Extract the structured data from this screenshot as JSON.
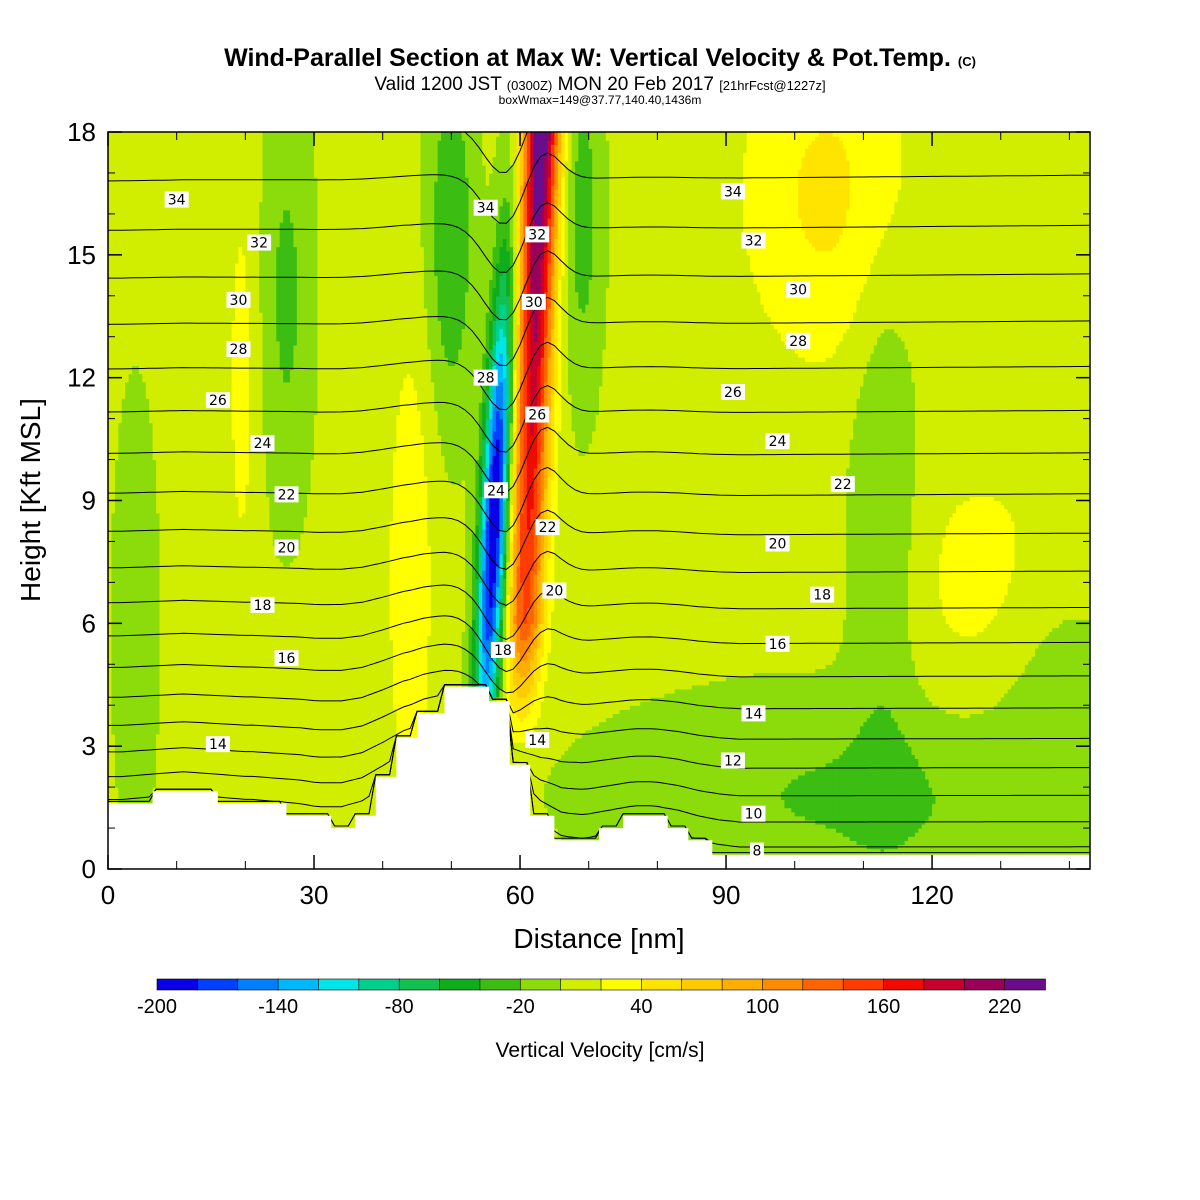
{
  "title": {
    "main": "Wind-Parallel Section at Max W: Vertical Velocity & Pot.Temp.",
    "copyright": "(C)",
    "valid_prefix": "Valid 1200 JST",
    "valid_utc": "(0300Z)",
    "valid_date": "MON 20 Feb 2017",
    "forecast": "[21hrFcst@1227z]",
    "boxinfo": "boxWmax=149@37.77,140.40,1436m"
  },
  "chart_data": {
    "type": "heatmap",
    "xlabel": "Distance [nm]",
    "ylabel": "Height [Kft MSL]",
    "xlim": [
      0,
      143
    ],
    "ylim": [
      0,
      18
    ],
    "x_ticks": [
      0,
      30,
      60,
      90,
      120
    ],
    "y_ticks": [
      0,
      3,
      6,
      9,
      12,
      15,
      18
    ],
    "terrain_profile": [
      [
        0,
        1.6
      ],
      [
        6.5,
        1.6
      ],
      [
        6.5,
        1.9
      ],
      [
        16,
        1.9
      ],
      [
        16,
        1.6
      ],
      [
        26,
        1.6
      ],
      [
        26,
        1.3
      ],
      [
        32.5,
        1.3
      ],
      [
        32.5,
        1.0
      ],
      [
        36,
        1.0
      ],
      [
        36,
        1.3
      ],
      [
        39,
        1.3
      ],
      [
        39,
        2.25
      ],
      [
        42,
        2.25
      ],
      [
        42,
        3.2
      ],
      [
        45,
        3.2
      ],
      [
        45,
        3.8
      ],
      [
        49,
        3.8
      ],
      [
        49,
        4.45
      ],
      [
        55.5,
        4.45
      ],
      [
        55.5,
        4.1
      ],
      [
        58.5,
        4.1
      ],
      [
        58.5,
        2.55
      ],
      [
        61.5,
        2.55
      ],
      [
        61.5,
        1.3
      ],
      [
        65,
        1.3
      ],
      [
        65,
        0.7
      ],
      [
        71.5,
        0.7
      ],
      [
        71.5,
        1.0
      ],
      [
        75,
        1.0
      ],
      [
        75,
        1.3
      ],
      [
        81.5,
        1.3
      ],
      [
        81.5,
        1.0
      ],
      [
        84.5,
        1.0
      ],
      [
        84.5,
        0.7
      ],
      [
        88,
        0.7
      ],
      [
        88,
        0.35
      ],
      [
        143,
        0.35
      ]
    ],
    "vertical_velocity": {
      "units": "cm/s",
      "colorbar_levels": [
        -200,
        -180,
        -160,
        -140,
        -120,
        -100,
        -80,
        -60,
        -40,
        -20,
        0,
        20,
        40,
        60,
        80,
        100,
        120,
        140,
        160,
        180,
        200,
        220,
        240
      ],
      "colorbar_labels": [
        -200,
        -140,
        -80,
        -20,
        40,
        100,
        160,
        220
      ],
      "colorbar_title": "Vertical Velocity [cm/s]",
      "colors": [
        "#0a00e8",
        "#0040ff",
        "#0080ff",
        "#00b8ff",
        "#00e6e6",
        "#00d08c",
        "#12c050",
        "#0fad1a",
        "#3bbd12",
        "#8cdc0c",
        "#d2ee00",
        "#ffff00",
        "#ffe400",
        "#ffca00",
        "#ffae00",
        "#ff8c00",
        "#ff6400",
        "#ff3c00",
        "#f00a00",
        "#c8002d",
        "#9b0059",
        "#6a0d8c"
      ],
      "features": {
        "downdraft_core": {
          "x": 55.5,
          "y": 8.5,
          "min": -200
        },
        "updraft_core": {
          "x": 62.5,
          "y": 16.5,
          "max": 240
        }
      }
    },
    "potential_temperature_contours": {
      "interval": 1,
      "labeled_levels": [
        8,
        10,
        12,
        14,
        16,
        18,
        20,
        22,
        24,
        26,
        28,
        30,
        32,
        34
      ]
    },
    "contour_labels": [
      {
        "x": 10,
        "y": 16.35,
        "text": "34"
      },
      {
        "x": 22,
        "y": 15.3,
        "text": "32"
      },
      {
        "x": 19,
        "y": 13.9,
        "text": "30"
      },
      {
        "x": 19,
        "y": 12.7,
        "text": "28"
      },
      {
        "x": 16,
        "y": 11.45,
        "text": "26"
      },
      {
        "x": 22.5,
        "y": 10.4,
        "text": "24"
      },
      {
        "x": 26,
        "y": 9.15,
        "text": "22"
      },
      {
        "x": 26,
        "y": 7.85,
        "text": "20"
      },
      {
        "x": 22.5,
        "y": 6.45,
        "text": "18"
      },
      {
        "x": 26,
        "y": 5.15,
        "text": "16"
      },
      {
        "x": 16,
        "y": 3.05,
        "text": "14"
      },
      {
        "x": 55,
        "y": 16.15,
        "text": "34"
      },
      {
        "x": 62.5,
        "y": 15.5,
        "text": "32"
      },
      {
        "x": 62,
        "y": 13.85,
        "text": "30"
      },
      {
        "x": 55,
        "y": 12.0,
        "text": "28"
      },
      {
        "x": 62.5,
        "y": 11.1,
        "text": "26"
      },
      {
        "x": 56.5,
        "y": 9.25,
        "text": "24"
      },
      {
        "x": 64,
        "y": 8.35,
        "text": "22"
      },
      {
        "x": 65,
        "y": 6.8,
        "text": "20"
      },
      {
        "x": 57.5,
        "y": 5.35,
        "text": "18"
      },
      {
        "x": 62.5,
        "y": 3.15,
        "text": "14"
      },
      {
        "x": 91,
        "y": 16.55,
        "text": "34"
      },
      {
        "x": 94,
        "y": 15.35,
        "text": "32"
      },
      {
        "x": 100.5,
        "y": 14.15,
        "text": "30"
      },
      {
        "x": 100.5,
        "y": 12.9,
        "text": "28"
      },
      {
        "x": 91,
        "y": 11.65,
        "text": "26"
      },
      {
        "x": 97.5,
        "y": 10.45,
        "text": "24"
      },
      {
        "x": 107,
        "y": 9.4,
        "text": "22"
      },
      {
        "x": 97.5,
        "y": 7.95,
        "text": "20"
      },
      {
        "x": 104,
        "y": 6.7,
        "text": "18"
      },
      {
        "x": 97.5,
        "y": 5.5,
        "text": "16"
      },
      {
        "x": 94,
        "y": 3.8,
        "text": "14"
      },
      {
        "x": 91,
        "y": 2.65,
        "text": "12"
      },
      {
        "x": 94,
        "y": 1.35,
        "text": "10"
      },
      {
        "x": 94.5,
        "y": 0.45,
        "text": "8"
      }
    ]
  }
}
